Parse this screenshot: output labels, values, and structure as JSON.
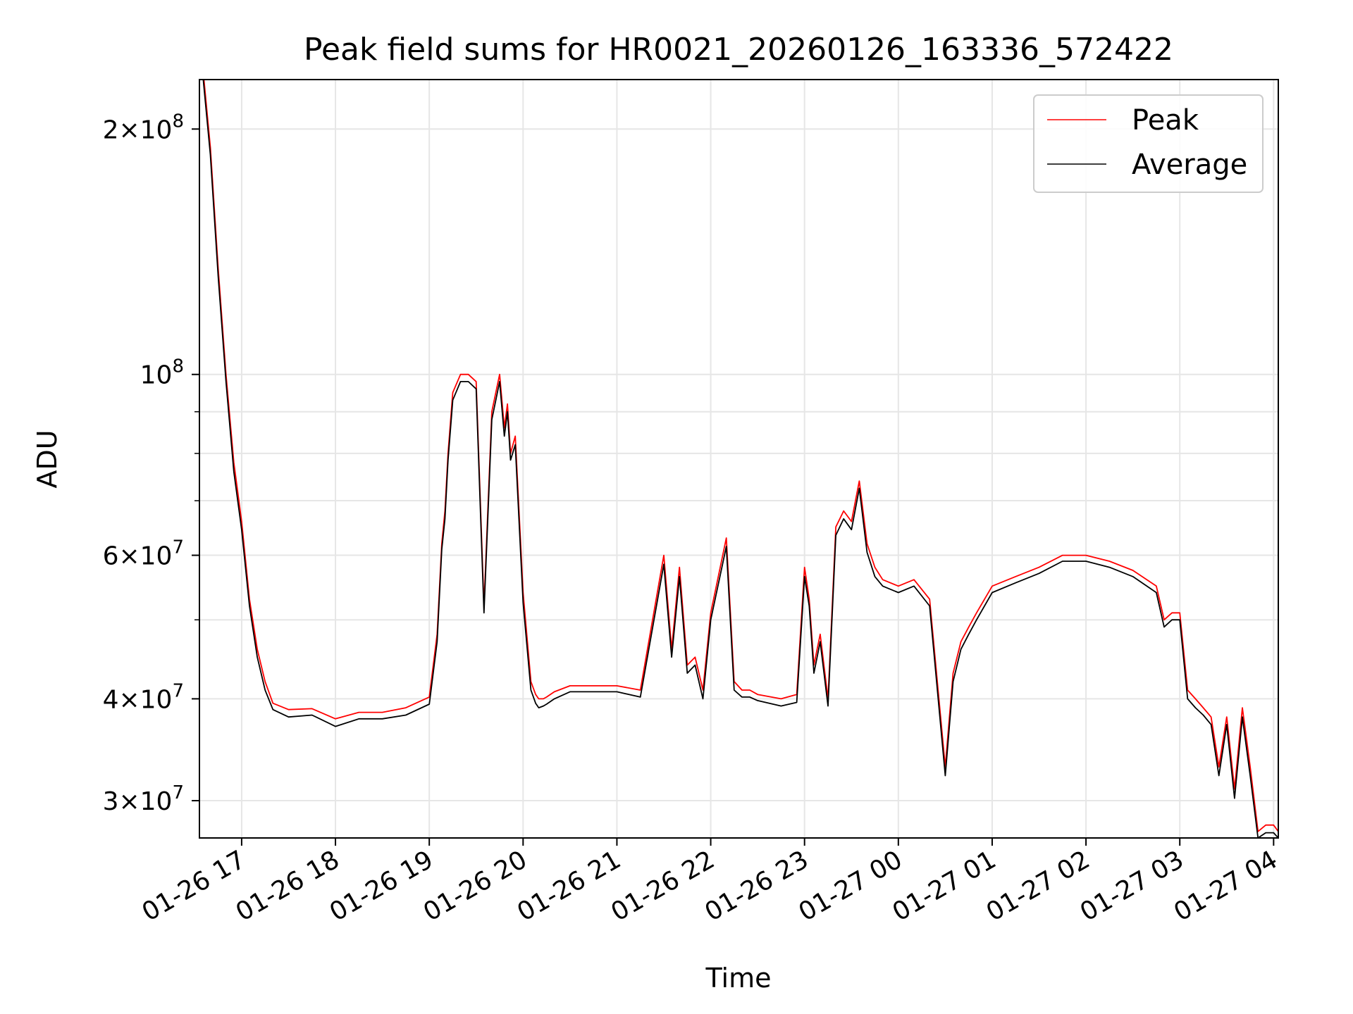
{
  "chart_data": {
    "type": "line",
    "title": "Peak field sums for HR0021_20260126_163336_572422",
    "xlabel": "Time",
    "ylabel": "ADU",
    "y_scale": "log",
    "ylim": [
      27000000,
      230000000
    ],
    "xlim": [
      "2026-01-26 16:33",
      "2026-01-27 04:03"
    ],
    "grid": true,
    "legend_position": "top-right",
    "x_ticks": [
      {
        "t": "2026-01-26 17:00",
        "label": "01-26 17"
      },
      {
        "t": "2026-01-26 18:00",
        "label": "01-26 18"
      },
      {
        "t": "2026-01-26 19:00",
        "label": "01-26 19"
      },
      {
        "t": "2026-01-26 20:00",
        "label": "01-26 20"
      },
      {
        "t": "2026-01-26 21:00",
        "label": "01-26 21"
      },
      {
        "t": "2026-01-26 22:00",
        "label": "01-26 22"
      },
      {
        "t": "2026-01-26 23:00",
        "label": "01-26 23"
      },
      {
        "t": "2026-01-27 00:00",
        "label": "01-27 00"
      },
      {
        "t": "2026-01-27 01:00",
        "label": "01-27 01"
      },
      {
        "t": "2026-01-27 02:00",
        "label": "01-27 02"
      },
      {
        "t": "2026-01-27 03:00",
        "label": "01-27 03"
      },
      {
        "t": "2026-01-27 04:00",
        "label": "01-27 04"
      }
    ],
    "y_ticks": [
      {
        "value": 30000000,
        "mantissa": "3",
        "exp": "7"
      },
      {
        "value": 40000000,
        "mantissa": "4",
        "exp": "7"
      },
      {
        "value": 60000000,
        "mantissa": "6",
        "exp": "7"
      },
      {
        "value": 100000000,
        "mantissa": "",
        "exp": "8"
      },
      {
        "value": 200000000,
        "mantissa": "2",
        "exp": "8"
      }
    ],
    "y_minor_ticks": [
      50000000,
      70000000,
      80000000,
      90000000
    ],
    "series": [
      {
        "name": "Peak",
        "color": "#ff0000",
        "x": [
          "2026-01-26 16:35",
          "2026-01-26 16:40",
          "2026-01-26 16:45",
          "2026-01-26 16:50",
          "2026-01-26 16:55",
          "2026-01-26 17:00",
          "2026-01-26 17:05",
          "2026-01-26 17:10",
          "2026-01-26 17:15",
          "2026-01-26 17:20",
          "2026-01-26 17:30",
          "2026-01-26 17:45",
          "2026-01-26 18:00",
          "2026-01-26 18:15",
          "2026-01-26 18:30",
          "2026-01-26 18:45",
          "2026-01-26 19:00",
          "2026-01-26 19:05",
          "2026-01-26 19:08",
          "2026-01-26 19:10",
          "2026-01-26 19:12",
          "2026-01-26 19:15",
          "2026-01-26 19:20",
          "2026-01-26 19:25",
          "2026-01-26 19:30",
          "2026-01-26 19:35",
          "2026-01-26 19:40",
          "2026-01-26 19:45",
          "2026-01-26 19:48",
          "2026-01-26 19:50",
          "2026-01-26 19:52",
          "2026-01-26 19:55",
          "2026-01-26 20:00",
          "2026-01-26 20:05",
          "2026-01-26 20:08",
          "2026-01-26 20:10",
          "2026-01-26 20:13",
          "2026-01-26 20:15",
          "2026-01-26 20:20",
          "2026-01-26 20:30",
          "2026-01-26 20:45",
          "2026-01-26 21:00",
          "2026-01-26 21:15",
          "2026-01-26 21:30",
          "2026-01-26 21:35",
          "2026-01-26 21:40",
          "2026-01-26 21:45",
          "2026-01-26 21:50",
          "2026-01-26 21:55",
          "2026-01-26 22:00",
          "2026-01-26 22:10",
          "2026-01-26 22:15",
          "2026-01-26 22:20",
          "2026-01-26 22:25",
          "2026-01-26 22:30",
          "2026-01-26 22:45",
          "2026-01-26 22:55",
          "2026-01-26 23:00",
          "2026-01-26 23:03",
          "2026-01-26 23:06",
          "2026-01-26 23:10",
          "2026-01-26 23:15",
          "2026-01-26 23:20",
          "2026-01-26 23:25",
          "2026-01-26 23:30",
          "2026-01-26 23:35",
          "2026-01-26 23:40",
          "2026-01-26 23:45",
          "2026-01-26 23:50",
          "2026-01-27 00:00",
          "2026-01-27 00:10",
          "2026-01-27 00:20",
          "2026-01-27 00:30",
          "2026-01-27 00:35",
          "2026-01-27 00:40",
          "2026-01-27 00:45",
          "2026-01-27 00:50",
          "2026-01-27 01:00",
          "2026-01-27 01:15",
          "2026-01-27 01:30",
          "2026-01-27 01:45",
          "2026-01-27 02:00",
          "2026-01-27 02:15",
          "2026-01-27 02:30",
          "2026-01-27 02:45",
          "2026-01-27 02:50",
          "2026-01-27 02:55",
          "2026-01-27 03:00",
          "2026-01-27 03:05",
          "2026-01-27 03:10",
          "2026-01-27 03:15",
          "2026-01-27 03:20",
          "2026-01-27 03:25",
          "2026-01-27 03:30",
          "2026-01-27 03:35",
          "2026-01-27 03:40",
          "2026-01-27 03:45",
          "2026-01-27 03:50",
          "2026-01-27 03:55",
          "2026-01-27 04:00",
          "2026-01-27 04:03"
        ],
        "values": [
          240000000,
          190000000,
          135000000,
          100000000,
          78000000,
          66000000,
          53000000,
          46000000,
          42000000,
          39500000,
          38800000,
          38900000,
          37800000,
          38500000,
          38500000,
          39000000,
          40200000,
          48000000,
          62000000,
          68000000,
          80000000,
          95000000,
          100000000,
          100000000,
          98000000,
          52000000,
          90000000,
          100000000,
          86000000,
          92000000,
          80000000,
          84000000,
          54000000,
          42000000,
          40500000,
          40000000,
          40000000,
          40200000,
          40800000,
          41500000,
          41500000,
          41500000,
          41000000,
          60000000,
          46000000,
          58000000,
          44000000,
          45000000,
          41000000,
          51000000,
          63000000,
          42000000,
          41000000,
          41000000,
          40500000,
          40000000,
          40500000,
          58000000,
          53000000,
          44000000,
          48000000,
          40000000,
          65000000,
          68000000,
          66000000,
          74000000,
          62000000,
          58000000,
          56000000,
          55000000,
          56000000,
          53000000,
          33000000,
          43000000,
          47000000,
          49000000,
          51000000,
          55000000,
          56500000,
          58000000,
          60000000,
          60000000,
          59000000,
          57500000,
          55000000,
          50000000,
          51000000,
          51000000,
          41000000,
          40000000,
          39000000,
          38000000,
          33000000,
          38000000,
          31000000,
          39000000,
          33000000,
          27500000,
          28000000,
          28000000,
          27500000
        ]
      },
      {
        "name": "Average",
        "color": "#000000",
        "x": [
          "2026-01-26 16:35",
          "2026-01-26 16:40",
          "2026-01-26 16:45",
          "2026-01-26 16:50",
          "2026-01-26 16:55",
          "2026-01-26 17:00",
          "2026-01-26 17:05",
          "2026-01-26 17:10",
          "2026-01-26 17:15",
          "2026-01-26 17:20",
          "2026-01-26 17:30",
          "2026-01-26 17:45",
          "2026-01-26 18:00",
          "2026-01-26 18:15",
          "2026-01-26 18:30",
          "2026-01-26 18:45",
          "2026-01-26 19:00",
          "2026-01-26 19:05",
          "2026-01-26 19:08",
          "2026-01-26 19:10",
          "2026-01-26 19:12",
          "2026-01-26 19:15",
          "2026-01-26 19:20",
          "2026-01-26 19:25",
          "2026-01-26 19:30",
          "2026-01-26 19:35",
          "2026-01-26 19:40",
          "2026-01-26 19:45",
          "2026-01-26 19:48",
          "2026-01-26 19:50",
          "2026-01-26 19:52",
          "2026-01-26 19:55",
          "2026-01-26 20:00",
          "2026-01-26 20:05",
          "2026-01-26 20:08",
          "2026-01-26 20:10",
          "2026-01-26 20:13",
          "2026-01-26 20:15",
          "2026-01-26 20:20",
          "2026-01-26 20:30",
          "2026-01-26 20:45",
          "2026-01-26 21:00",
          "2026-01-26 21:15",
          "2026-01-26 21:30",
          "2026-01-26 21:35",
          "2026-01-26 21:40",
          "2026-01-26 21:45",
          "2026-01-26 21:50",
          "2026-01-26 21:55",
          "2026-01-26 22:00",
          "2026-01-26 22:10",
          "2026-01-26 22:15",
          "2026-01-26 22:20",
          "2026-01-26 22:25",
          "2026-01-26 22:30",
          "2026-01-26 22:45",
          "2026-01-26 22:55",
          "2026-01-26 23:00",
          "2026-01-26 23:03",
          "2026-01-26 23:06",
          "2026-01-26 23:10",
          "2026-01-26 23:15",
          "2026-01-26 23:20",
          "2026-01-26 23:25",
          "2026-01-26 23:30",
          "2026-01-26 23:35",
          "2026-01-26 23:40",
          "2026-01-26 23:45",
          "2026-01-26 23:50",
          "2026-01-27 00:00",
          "2026-01-27 00:10",
          "2026-01-27 00:20",
          "2026-01-27 00:30",
          "2026-01-27 00:35",
          "2026-01-27 00:40",
          "2026-01-27 00:45",
          "2026-01-27 00:50",
          "2026-01-27 01:00",
          "2026-01-27 01:15",
          "2026-01-27 01:30",
          "2026-01-27 01:45",
          "2026-01-27 02:00",
          "2026-01-27 02:15",
          "2026-01-27 02:30",
          "2026-01-27 02:45",
          "2026-01-27 02:50",
          "2026-01-27 02:55",
          "2026-01-27 03:00",
          "2026-01-27 03:05",
          "2026-01-27 03:10",
          "2026-01-27 03:15",
          "2026-01-27 03:20",
          "2026-01-27 03:25",
          "2026-01-27 03:30",
          "2026-01-27 03:35",
          "2026-01-27 03:40",
          "2026-01-27 03:45",
          "2026-01-27 03:50",
          "2026-01-27 03:55",
          "2026-01-27 04:00",
          "2026-01-27 04:03"
        ],
        "values": [
          235000000,
          186000000,
          132000000,
          98000000,
          76000000,
          64500000,
          52000000,
          45000000,
          41000000,
          38800000,
          38000000,
          38200000,
          37000000,
          37800000,
          37800000,
          38200000,
          39400000,
          47000000,
          61000000,
          66500000,
          78500000,
          93000000,
          98000000,
          98000000,
          96000000,
          51000000,
          88000000,
          98000000,
          84000000,
          90000000,
          78500000,
          82000000,
          52500000,
          41000000,
          39500000,
          39000000,
          39200000,
          39400000,
          40000000,
          40800000,
          40800000,
          40800000,
          40200000,
          58500000,
          45000000,
          56500000,
          43000000,
          44000000,
          40000000,
          50000000,
          61500000,
          41000000,
          40200000,
          40200000,
          39800000,
          39200000,
          39600000,
          56500000,
          52000000,
          43000000,
          47000000,
          39200000,
          63500000,
          66500000,
          64500000,
          72500000,
          60500000,
          56500000,
          55000000,
          54000000,
          55000000,
          52000000,
          32200000,
          42000000,
          46000000,
          48000000,
          50000000,
          54000000,
          55500000,
          57000000,
          59000000,
          59000000,
          58000000,
          56500000,
          54000000,
          49000000,
          50000000,
          50000000,
          40000000,
          39000000,
          38200000,
          37200000,
          32200000,
          37200000,
          30200000,
          38000000,
          32200000,
          27000000,
          27400000,
          27400000,
          27000000
        ]
      }
    ]
  }
}
